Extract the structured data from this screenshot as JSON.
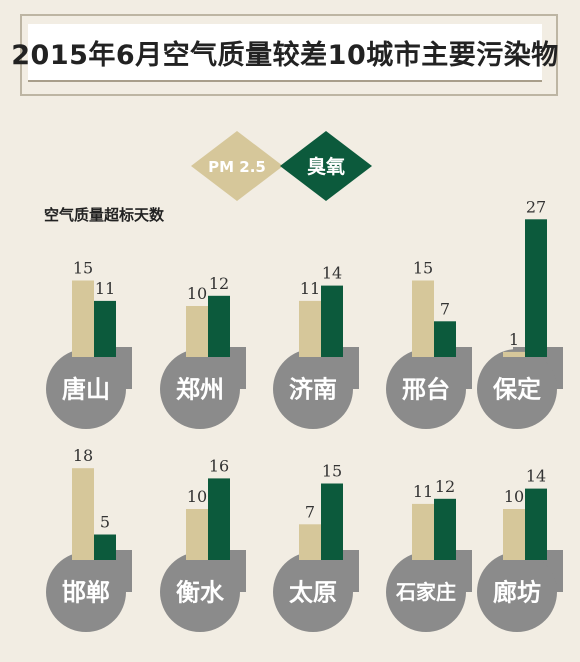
{
  "page": {
    "title": "2015年6月空气质量较差10城市主要污染物"
  },
  "colors": {
    "background": "#f2ede3",
    "pm25": "#d6c79a",
    "ozone": "#0c5a3c",
    "city_circle": "#8b8b8b",
    "city_text": "#ffffff",
    "label_text": "#333333"
  },
  "chart_data": {
    "type": "bar",
    "title": "2015年6月空气质量较差10城市主要污染物",
    "ylabel": "空气质量超标天数",
    "legend_position": "top-center",
    "categories": [
      "唐山",
      "郑州",
      "济南",
      "邢台",
      "保定",
      "邯郸",
      "衡水",
      "太原",
      "石家庄",
      "廊坊"
    ],
    "series": [
      {
        "name": "PM 2.5",
        "values": [
          15,
          10,
          11,
          15,
          1,
          18,
          10,
          7,
          11,
          10
        ]
      },
      {
        "name": "臭氧",
        "values": [
          11,
          12,
          14,
          7,
          27,
          5,
          16,
          15,
          12,
          14
        ]
      }
    ]
  }
}
